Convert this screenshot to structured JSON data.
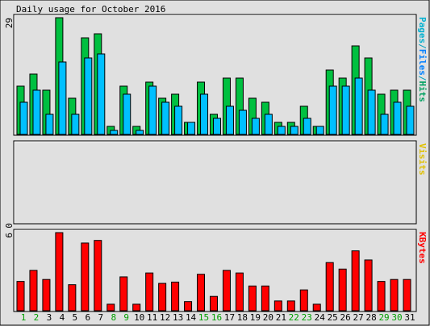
{
  "chart_data": {
    "type": "bar",
    "title": "Daily usage for October 2016",
    "categories": [
      "1",
      "2",
      "3",
      "4",
      "5",
      "6",
      "7",
      "8",
      "9",
      "10",
      "11",
      "12",
      "13",
      "14",
      "15",
      "16",
      "17",
      "18",
      "19",
      "20",
      "21",
      "22",
      "23",
      "24",
      "25",
      "26",
      "27",
      "28",
      "29",
      "30",
      "31"
    ],
    "category_colors": [
      "#00a000",
      "#00a000",
      "#000000",
      "#000000",
      "#000000",
      "#000000",
      "#000000",
      "#00a000",
      "#00a000",
      "#000000",
      "#000000",
      "#000000",
      "#000000",
      "#000000",
      "#00a000",
      "#00a000",
      "#000000",
      "#000000",
      "#000000",
      "#000000",
      "#000000",
      "#00a000",
      "#00a000",
      "#000000",
      "#000000",
      "#000000",
      "#000000",
      "#000000",
      "#00a000",
      "#00a000",
      "#000000"
    ],
    "panels": [
      {
        "ylim": [
          0,
          29
        ],
        "yticks": [
          29
        ],
        "series": [
          {
            "name": "Hits",
            "color": "#00c040",
            "label_color": "#00a060",
            "values": [
              12,
              15,
              11,
              29,
              9,
              24,
              25,
              2,
              12,
              2,
              13,
              9,
              10,
              3,
              13,
              5,
              14,
              14,
              9,
              8,
              3,
              3,
              7,
              2,
              16,
              14,
              22,
              19,
              10,
              11,
              11
            ]
          },
          {
            "name": "Files",
            "color": "#00c0ff",
            "label_color": "#0080ff",
            "values": [
              8,
              11,
              5,
              18,
              5,
              19,
              20,
              1,
              10,
              1,
              12,
              8,
              7,
              3,
              10,
              4,
              7,
              6,
              4,
              5,
              2,
              2,
              4,
              2,
              12,
              12,
              14,
              11,
              5,
              8,
              7
            ]
          },
          {
            "name": "Pages",
            "color": "#00e0e0",
            "label_color": "#00b0d0",
            "values": [
              0,
              0,
              0,
              0,
              0,
              0,
              0,
              0,
              0,
              0,
              0,
              0,
              0,
              0,
              0,
              0,
              0,
              0,
              0,
              0,
              0,
              0,
              0,
              0,
              0,
              0,
              0,
              0,
              0,
              0,
              0
            ]
          }
        ]
      },
      {
        "ylim": [
          0,
          1
        ],
        "yticks": [
          0
        ],
        "series": [
          {
            "name": "Visits",
            "color": "#ffff00",
            "label_color": "#e0c000",
            "values": [
              0,
              0,
              0,
              0,
              0,
              0,
              0,
              0,
              0,
              0,
              0,
              0,
              0,
              0,
              0,
              0,
              0,
              0,
              0,
              0,
              0,
              0,
              0,
              0,
              0,
              0,
              0,
              0,
              0,
              0,
              0
            ]
          }
        ]
      },
      {
        "ylim": [
          0,
          6
        ],
        "yticks": [
          6
        ],
        "series": [
          {
            "name": "KBytes",
            "color": "#ff0000",
            "label_color": "#ff0000",
            "values": [
              2.25,
              3.1,
              2.4,
              6,
              2,
              5.2,
              5.4,
              0.5,
              2.6,
              0.5,
              2.9,
              2.1,
              2.2,
              0.7,
              2.8,
              1.1,
              3.1,
              2.9,
              1.9,
              1.9,
              0.75,
              0.75,
              1.6,
              0.5,
              3.7,
              3.2,
              4.6,
              3.9,
              2.25,
              2.4,
              2.4
            ]
          }
        ]
      }
    ]
  }
}
